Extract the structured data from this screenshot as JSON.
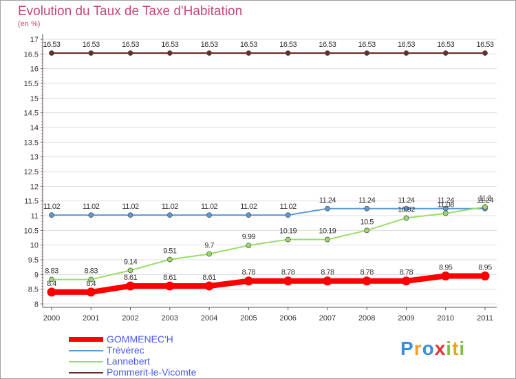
{
  "header": {
    "title": "Evolution du Taux de Taxe d'Habitation",
    "subtitle": "(en %)"
  },
  "colors": {
    "title": "#c4477b",
    "legend_text": "#4a5aef",
    "axis": "#555555",
    "grid": "#dddddd"
  },
  "chart_data": {
    "type": "line",
    "categories": [
      "2000",
      "2001",
      "2002",
      "2003",
      "2004",
      "2005",
      "2006",
      "2007",
      "2008",
      "2009",
      "2010",
      "2011"
    ],
    "ylim": [
      8,
      17
    ],
    "yticks": [
      "8",
      "8.5",
      "9",
      "9.5",
      "10",
      "10.5",
      "11",
      "11.5",
      "12",
      "12.5",
      "13",
      "13.5",
      "14",
      "14.5",
      "15",
      "15.5",
      "16",
      "16.5",
      "17"
    ],
    "grid": "horizontal",
    "legend_position": "bottom-left",
    "series": [
      {
        "name": "GOMMENEC'H",
        "color": "#ff0000",
        "values": [
          8.4,
          8.4,
          8.61,
          8.61,
          8.61,
          8.78,
          8.78,
          8.78,
          8.78,
          8.78,
          8.95,
          8.95
        ],
        "labels": [
          "8.4",
          "8.4",
          "8.61",
          "8.61",
          "8.61",
          "8.78",
          "8.78",
          "8.78",
          "8.78",
          "8.78",
          "8.95",
          "8.95"
        ]
      },
      {
        "name": "Trévérec",
        "color": "#5b9bd5",
        "values": [
          11.02,
          11.02,
          11.02,
          11.02,
          11.02,
          11.02,
          11.02,
          11.24,
          11.24,
          11.24,
          11.24,
          11.24
        ],
        "labels": [
          "11.02",
          "11.02",
          "11.02",
          "11.02",
          "11.02",
          "11.02",
          "11.02",
          "11.24",
          "11.24",
          "11.24",
          "11.24",
          "11.24"
        ]
      },
      {
        "name": "Lannebert",
        "color": "#99dd66",
        "values": [
          8.83,
          8.83,
          9.14,
          9.51,
          9.7,
          9.99,
          10.19,
          10.19,
          10.5,
          10.92,
          11.08,
          11.3
        ],
        "labels": [
          "8.83",
          "8.83",
          "9.14",
          "9.51",
          "9.7",
          "9.99",
          "10.19",
          "10.19",
          "10.5",
          "10.92",
          "11.08",
          "11.3"
        ]
      },
      {
        "name": "Pommerit-le-Vicomte",
        "color": "#6b2a2a",
        "values": [
          16.53,
          16.53,
          16.53,
          16.53,
          16.53,
          16.53,
          16.53,
          16.53,
          16.53,
          16.53,
          16.53,
          16.53
        ],
        "labels": [
          "16.53",
          "16.53",
          "16.53",
          "16.53",
          "16.53",
          "16.53",
          "16.53",
          "16.53",
          "16.53",
          "16.53",
          "16.53",
          "16.53"
        ]
      }
    ]
  },
  "logo": {
    "letters": [
      "P",
      "r",
      "o",
      "x",
      "i",
      "t",
      "i"
    ],
    "letter_colors": [
      "#3b8fd8",
      "#f0a020",
      "#3b8fd8",
      "#e83030",
      "#80c040",
      "#f0a020",
      "#80c040"
    ]
  }
}
